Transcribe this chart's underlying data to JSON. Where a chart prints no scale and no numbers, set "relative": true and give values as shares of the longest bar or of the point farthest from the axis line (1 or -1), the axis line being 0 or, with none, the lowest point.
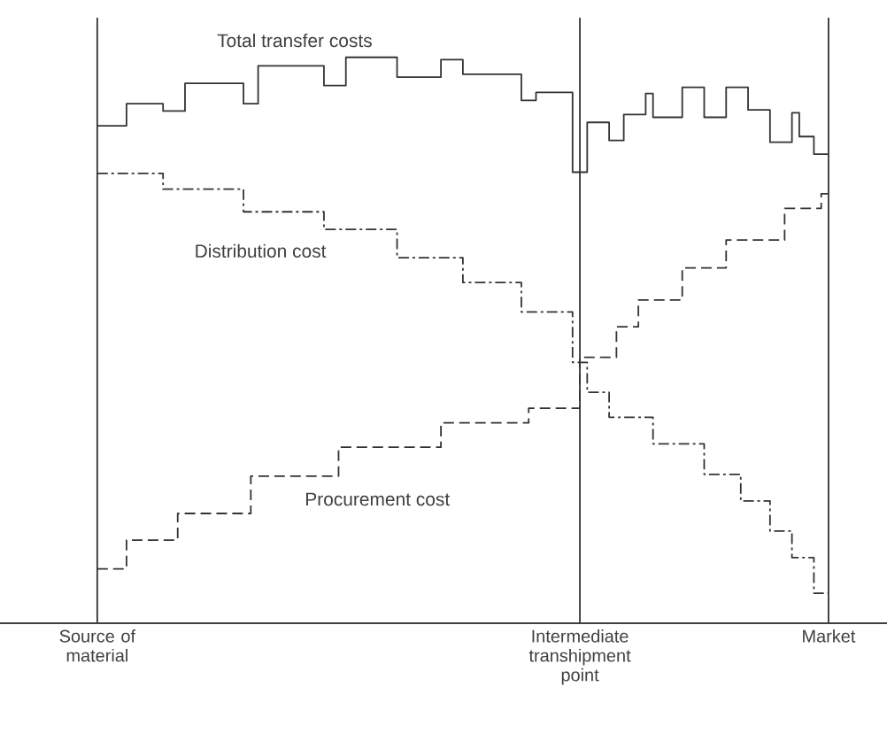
{
  "chart_data": {
    "type": "step",
    "relative": true,
    "grid": "x",
    "categories": [
      "Source of material",
      null,
      null,
      null,
      null,
      null,
      null,
      null,
      null,
      null,
      null,
      null,
      null,
      null,
      null,
      null,
      null,
      null,
      null,
      null,
      null,
      null,
      null,
      null,
      null,
      null,
      null,
      null,
      null,
      null,
      null,
      null,
      null,
      null,
      null,
      null,
      null,
      null,
      null,
      null,
      null,
      null,
      null,
      null,
      null,
      null,
      null,
      null,
      null,
      null,
      null,
      null,
      null,
      null,
      null,
      null,
      null,
      null,
      null,
      null,
      null,
      null,
      null,
      null,
      null,
      null,
      "Intermediate transhipment point",
      null,
      null,
      null,
      null,
      null,
      null,
      null,
      null,
      null,
      null,
      null,
      null,
      null,
      null,
      null,
      null,
      null,
      null,
      null,
      null,
      null,
      null,
      null,
      null,
      null,
      null,
      null,
      null,
      null,
      null,
      null,
      null,
      null,
      "Market"
    ],
    "series": [
      {
        "name": "Total transfer costs",
        "color": "#333333",
        "line_style": "solid",
        "values": [
          0.879,
          0.879,
          0.879,
          0.879,
          0.918,
          0.918,
          0.918,
          0.918,
          0.918,
          0.905,
          0.905,
          0.905,
          0.954,
          0.954,
          0.954,
          0.954,
          0.954,
          0.954,
          0.954,
          0.954,
          0.918,
          0.918,
          0.985,
          0.985,
          0.985,
          0.985,
          0.985,
          0.985,
          0.985,
          0.985,
          0.985,
          0.95,
          0.95,
          0.95,
          1.0,
          1.0,
          1.0,
          1.0,
          1.0,
          1.0,
          1.0,
          0.965,
          0.965,
          0.965,
          0.965,
          0.965,
          0.965,
          0.996,
          0.996,
          0.996,
          0.97,
          0.97,
          0.97,
          0.97,
          0.97,
          0.97,
          0.97,
          0.97,
          0.924,
          0.924,
          0.938,
          0.938,
          0.938,
          0.938,
          0.938,
          0.797,
          0.797,
          0.885,
          0.885,
          0.885,
          0.853,
          0.853,
          0.899,
          0.899,
          0.899,
          0.936,
          0.894,
          0.894,
          0.894,
          0.894,
          0.947,
          0.947,
          0.947,
          0.894,
          0.894,
          0.894,
          0.947,
          0.947,
          0.947,
          0.907,
          0.907,
          0.907,
          0.85,
          0.85,
          0.85,
          0.902,
          0.86,
          0.86,
          0.829,
          0.829,
          0.829
        ]
      },
      {
        "name": "Distribution cost",
        "color": "#333333",
        "line_style": "dashdot",
        "values": [
          0.795,
          0.795,
          0.795,
          0.795,
          0.795,
          0.795,
          0.795,
          0.795,
          0.795,
          0.767,
          0.767,
          0.767,
          0.767,
          0.767,
          0.767,
          0.767,
          0.767,
          0.767,
          0.767,
          0.767,
          0.727,
          0.727,
          0.727,
          0.727,
          0.727,
          0.727,
          0.727,
          0.727,
          0.727,
          0.727,
          0.727,
          0.696,
          0.696,
          0.696,
          0.696,
          0.696,
          0.696,
          0.696,
          0.696,
          0.696,
          0.696,
          0.646,
          0.646,
          0.646,
          0.646,
          0.646,
          0.646,
          0.646,
          0.646,
          0.646,
          0.602,
          0.602,
          0.602,
          0.602,
          0.602,
          0.602,
          0.602,
          0.602,
          0.55,
          0.55,
          0.55,
          0.55,
          0.55,
          0.55,
          0.55,
          0.461,
          0.461,
          0.408,
          0.408,
          0.408,
          0.364,
          0.364,
          0.364,
          0.364,
          0.364,
          0.364,
          0.317,
          0.317,
          0.317,
          0.317,
          0.317,
          0.317,
          0.317,
          0.263,
          0.263,
          0.263,
          0.263,
          0.263,
          0.216,
          0.216,
          0.216,
          0.216,
          0.163,
          0.163,
          0.163,
          0.116,
          0.116,
          0.116,
          0.053,
          0.053,
          0.053
        ]
      },
      {
        "name": "Procurement cost",
        "color": "#333333",
        "line_style": "dashed",
        "values": [
          0.096,
          0.096,
          0.096,
          0.096,
          0.147,
          0.147,
          0.147,
          0.147,
          0.147,
          0.147,
          0.147,
          0.194,
          0.194,
          0.194,
          0.194,
          0.194,
          0.194,
          0.194,
          0.194,
          0.194,
          0.194,
          0.26,
          0.26,
          0.26,
          0.26,
          0.26,
          0.26,
          0.26,
          0.26,
          0.26,
          0.26,
          0.26,
          0.26,
          0.311,
          0.311,
          0.311,
          0.311,
          0.311,
          0.311,
          0.311,
          0.311,
          0.311,
          0.311,
          0.311,
          0.311,
          0.311,
          0.311,
          0.354,
          0.354,
          0.354,
          0.354,
          0.354,
          0.354,
          0.354,
          0.354,
          0.354,
          0.354,
          0.354,
          0.354,
          0.38,
          0.38,
          0.38,
          0.38,
          0.38,
          0.38,
          0.38,
          0.47,
          0.47,
          0.47,
          0.47,
          0.47,
          0.524,
          0.524,
          0.524,
          0.571,
          0.571,
          0.571,
          0.571,
          0.571,
          0.571,
          0.628,
          0.628,
          0.628,
          0.628,
          0.628,
          0.628,
          0.677,
          0.677,
          0.677,
          0.677,
          0.677,
          0.677,
          0.677,
          0.677,
          0.733,
          0.733,
          0.733,
          0.733,
          0.733,
          0.759,
          0.759
        ]
      }
    ]
  }
}
